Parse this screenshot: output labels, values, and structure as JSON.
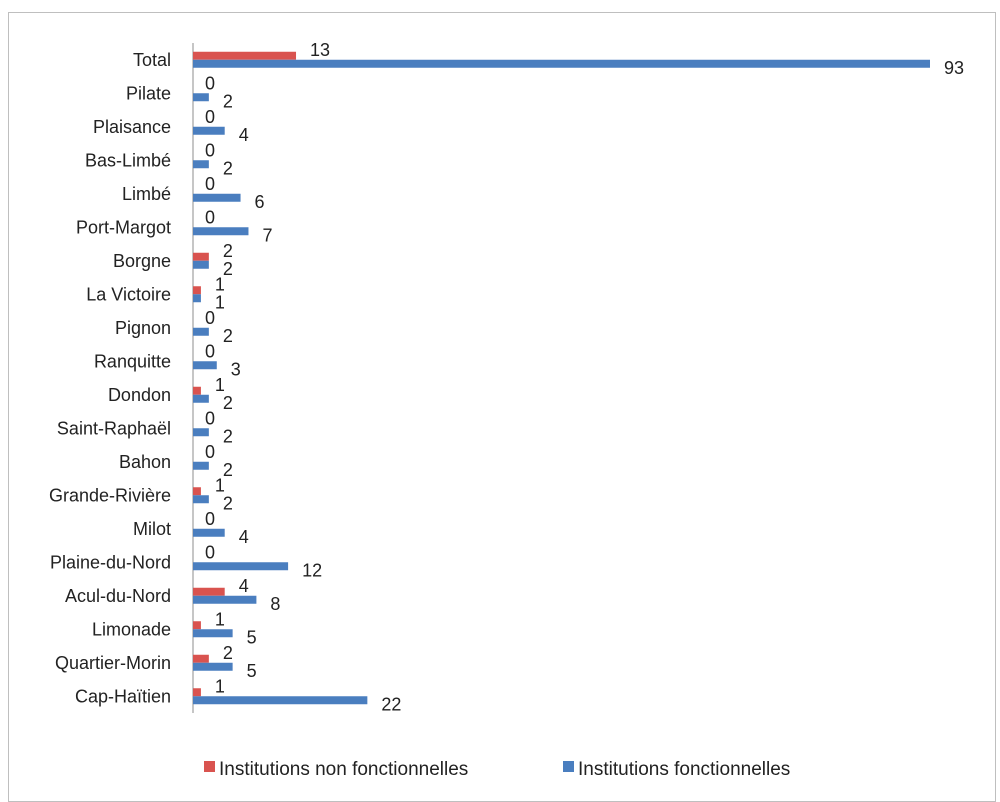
{
  "chart_data": {
    "type": "bar",
    "orientation": "horizontal",
    "categories": [
      "Total",
      "Pilate",
      "Plaisance",
      "Bas-Limbé",
      "Limbé",
      "Port-Margot",
      "Borgne",
      "La Victoire",
      "Pignon",
      "Ranquitte",
      "Dondon",
      "Saint-Raphaël",
      "Bahon",
      "Grande-Rivière",
      "Milot",
      "Plaine-du-Nord",
      "Acul-du-Nord",
      "Limonade",
      "Quartier-Morin",
      "Cap-Haïtien"
    ],
    "series": [
      {
        "name": "Institutions non fonctionnelles",
        "color": "#d9534f",
        "values": [
          13,
          0,
          0,
          0,
          0,
          0,
          2,
          1,
          0,
          0,
          1,
          0,
          0,
          1,
          0,
          0,
          4,
          1,
          2,
          1
        ]
      },
      {
        "name": "Institutions fonctionnelles",
        "color": "#4a7ebf",
        "values": [
          93,
          2,
          4,
          2,
          6,
          7,
          2,
          1,
          2,
          3,
          2,
          2,
          2,
          2,
          4,
          12,
          8,
          5,
          5,
          22
        ]
      }
    ],
    "xlim": [
      0,
      93
    ],
    "grid": false,
    "legend_position": "bottom"
  }
}
